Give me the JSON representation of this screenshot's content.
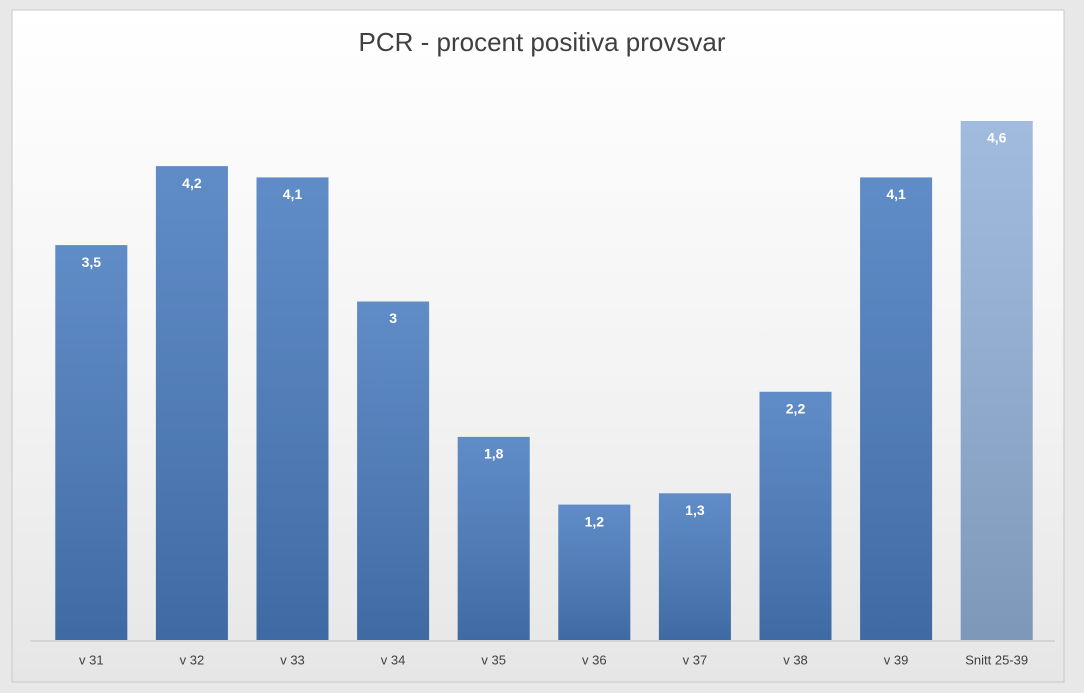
{
  "chart_data": {
    "type": "bar",
    "title": "PCR - procent positiva provsvar",
    "categories": [
      "v 31",
      "v 32",
      "v 33",
      "v 34",
      "v 35",
      "v 36",
      "v 37",
      "v 38",
      "v 39",
      "Snitt 25-39"
    ],
    "values": [
      3.5,
      4.2,
      4.1,
      3,
      1.8,
      1.2,
      1.3,
      2.2,
      4.1,
      4.6
    ],
    "value_labels": [
      "3,5",
      "4,2",
      "4,1",
      "3",
      "1,8",
      "1,2",
      "1,3",
      "2,2",
      "4,1",
      "4,6"
    ],
    "colors": [
      "#4a7cbf",
      "#4a7cbf",
      "#4a7cbf",
      "#4a7cbf",
      "#4a7cbf",
      "#4a7cbf",
      "#4a7cbf",
      "#4a7cbf",
      "#4a7cbf",
      "#93b2d9"
    ]
  }
}
